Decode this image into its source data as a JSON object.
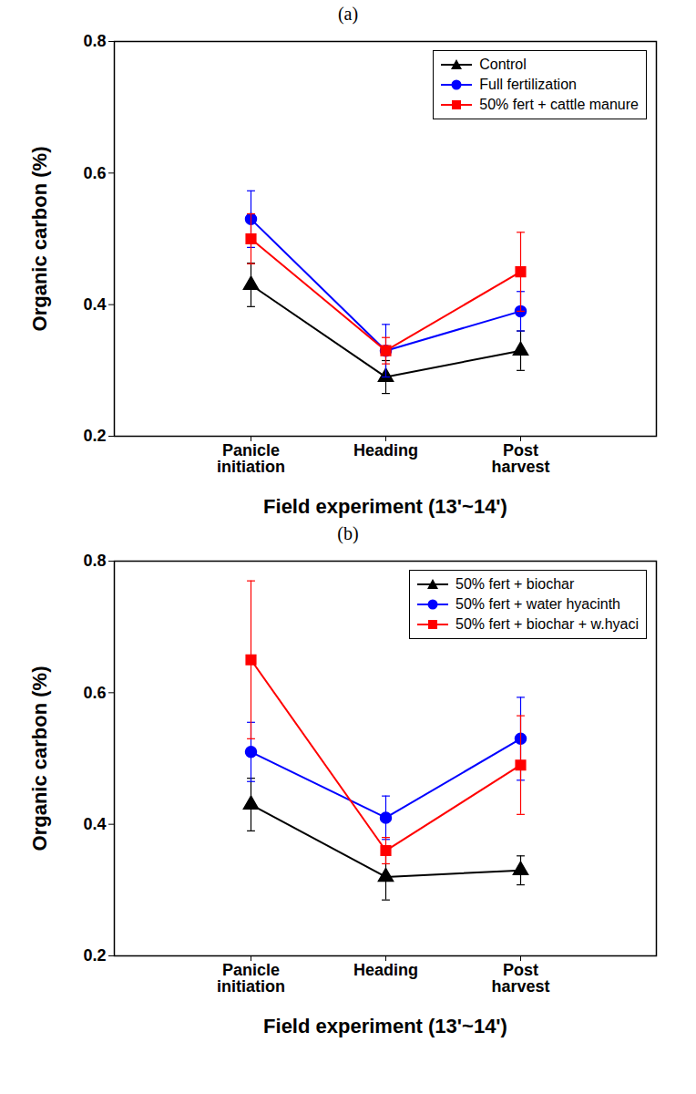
{
  "chart_data": [
    {
      "type": "line",
      "title": "(a)",
      "x_label": "Field experiment (13'~14')",
      "y_label": "Organic carbon (%)",
      "categories": [
        "Panicle initiation",
        "Heading",
        "Post harvest"
      ],
      "ylim": [
        0.2,
        0.8
      ],
      "yticks": [
        0.2,
        0.4,
        0.6,
        0.8
      ],
      "legend": "upper right",
      "series": [
        {
          "name": "Control",
          "color": "#000000",
          "marker": "triangle",
          "values": [
            0.43,
            0.29,
            0.33
          ],
          "errors": [
            0.033,
            0.025,
            0.03
          ]
        },
        {
          "name": "Full fertilization",
          "color": "#0000ff",
          "marker": "circle",
          "values": [
            0.53,
            0.33,
            0.39
          ],
          "errors": [
            0.043,
            0.04,
            0.03
          ]
        },
        {
          "name": "50% fert + cattle manure",
          "color": "#ff0000",
          "marker": "square",
          "values": [
            0.5,
            0.33,
            0.45
          ],
          "errors": [
            0.038,
            0.02,
            0.06
          ]
        }
      ]
    },
    {
      "type": "line",
      "title": "(b)",
      "x_label": "Field experiment (13'~14')",
      "y_label": "Organic carbon (%)",
      "categories": [
        "Panicle initiation",
        "Heading",
        "Post harvest"
      ],
      "ylim": [
        0.2,
        0.8
      ],
      "yticks": [
        0.2,
        0.4,
        0.6,
        0.8
      ],
      "legend": "upper right",
      "series": [
        {
          "name": "50% fert + biochar",
          "color": "#000000",
          "marker": "triangle",
          "values": [
            0.43,
            0.32,
            0.33
          ],
          "errors": [
            0.04,
            0.035,
            0.022
          ]
        },
        {
          "name": "50% fert + water hyacinth",
          "color": "#0000ff",
          "marker": "circle",
          "values": [
            0.51,
            0.41,
            0.53
          ],
          "errors": [
            0.045,
            0.033,
            0.063
          ]
        },
        {
          "name": "50% fert + biochar + w.hyaci",
          "color": "#ff0000",
          "marker": "square",
          "values": [
            0.65,
            0.36,
            0.49
          ],
          "errors": [
            0.12,
            0.02,
            0.075
          ]
        }
      ]
    }
  ]
}
